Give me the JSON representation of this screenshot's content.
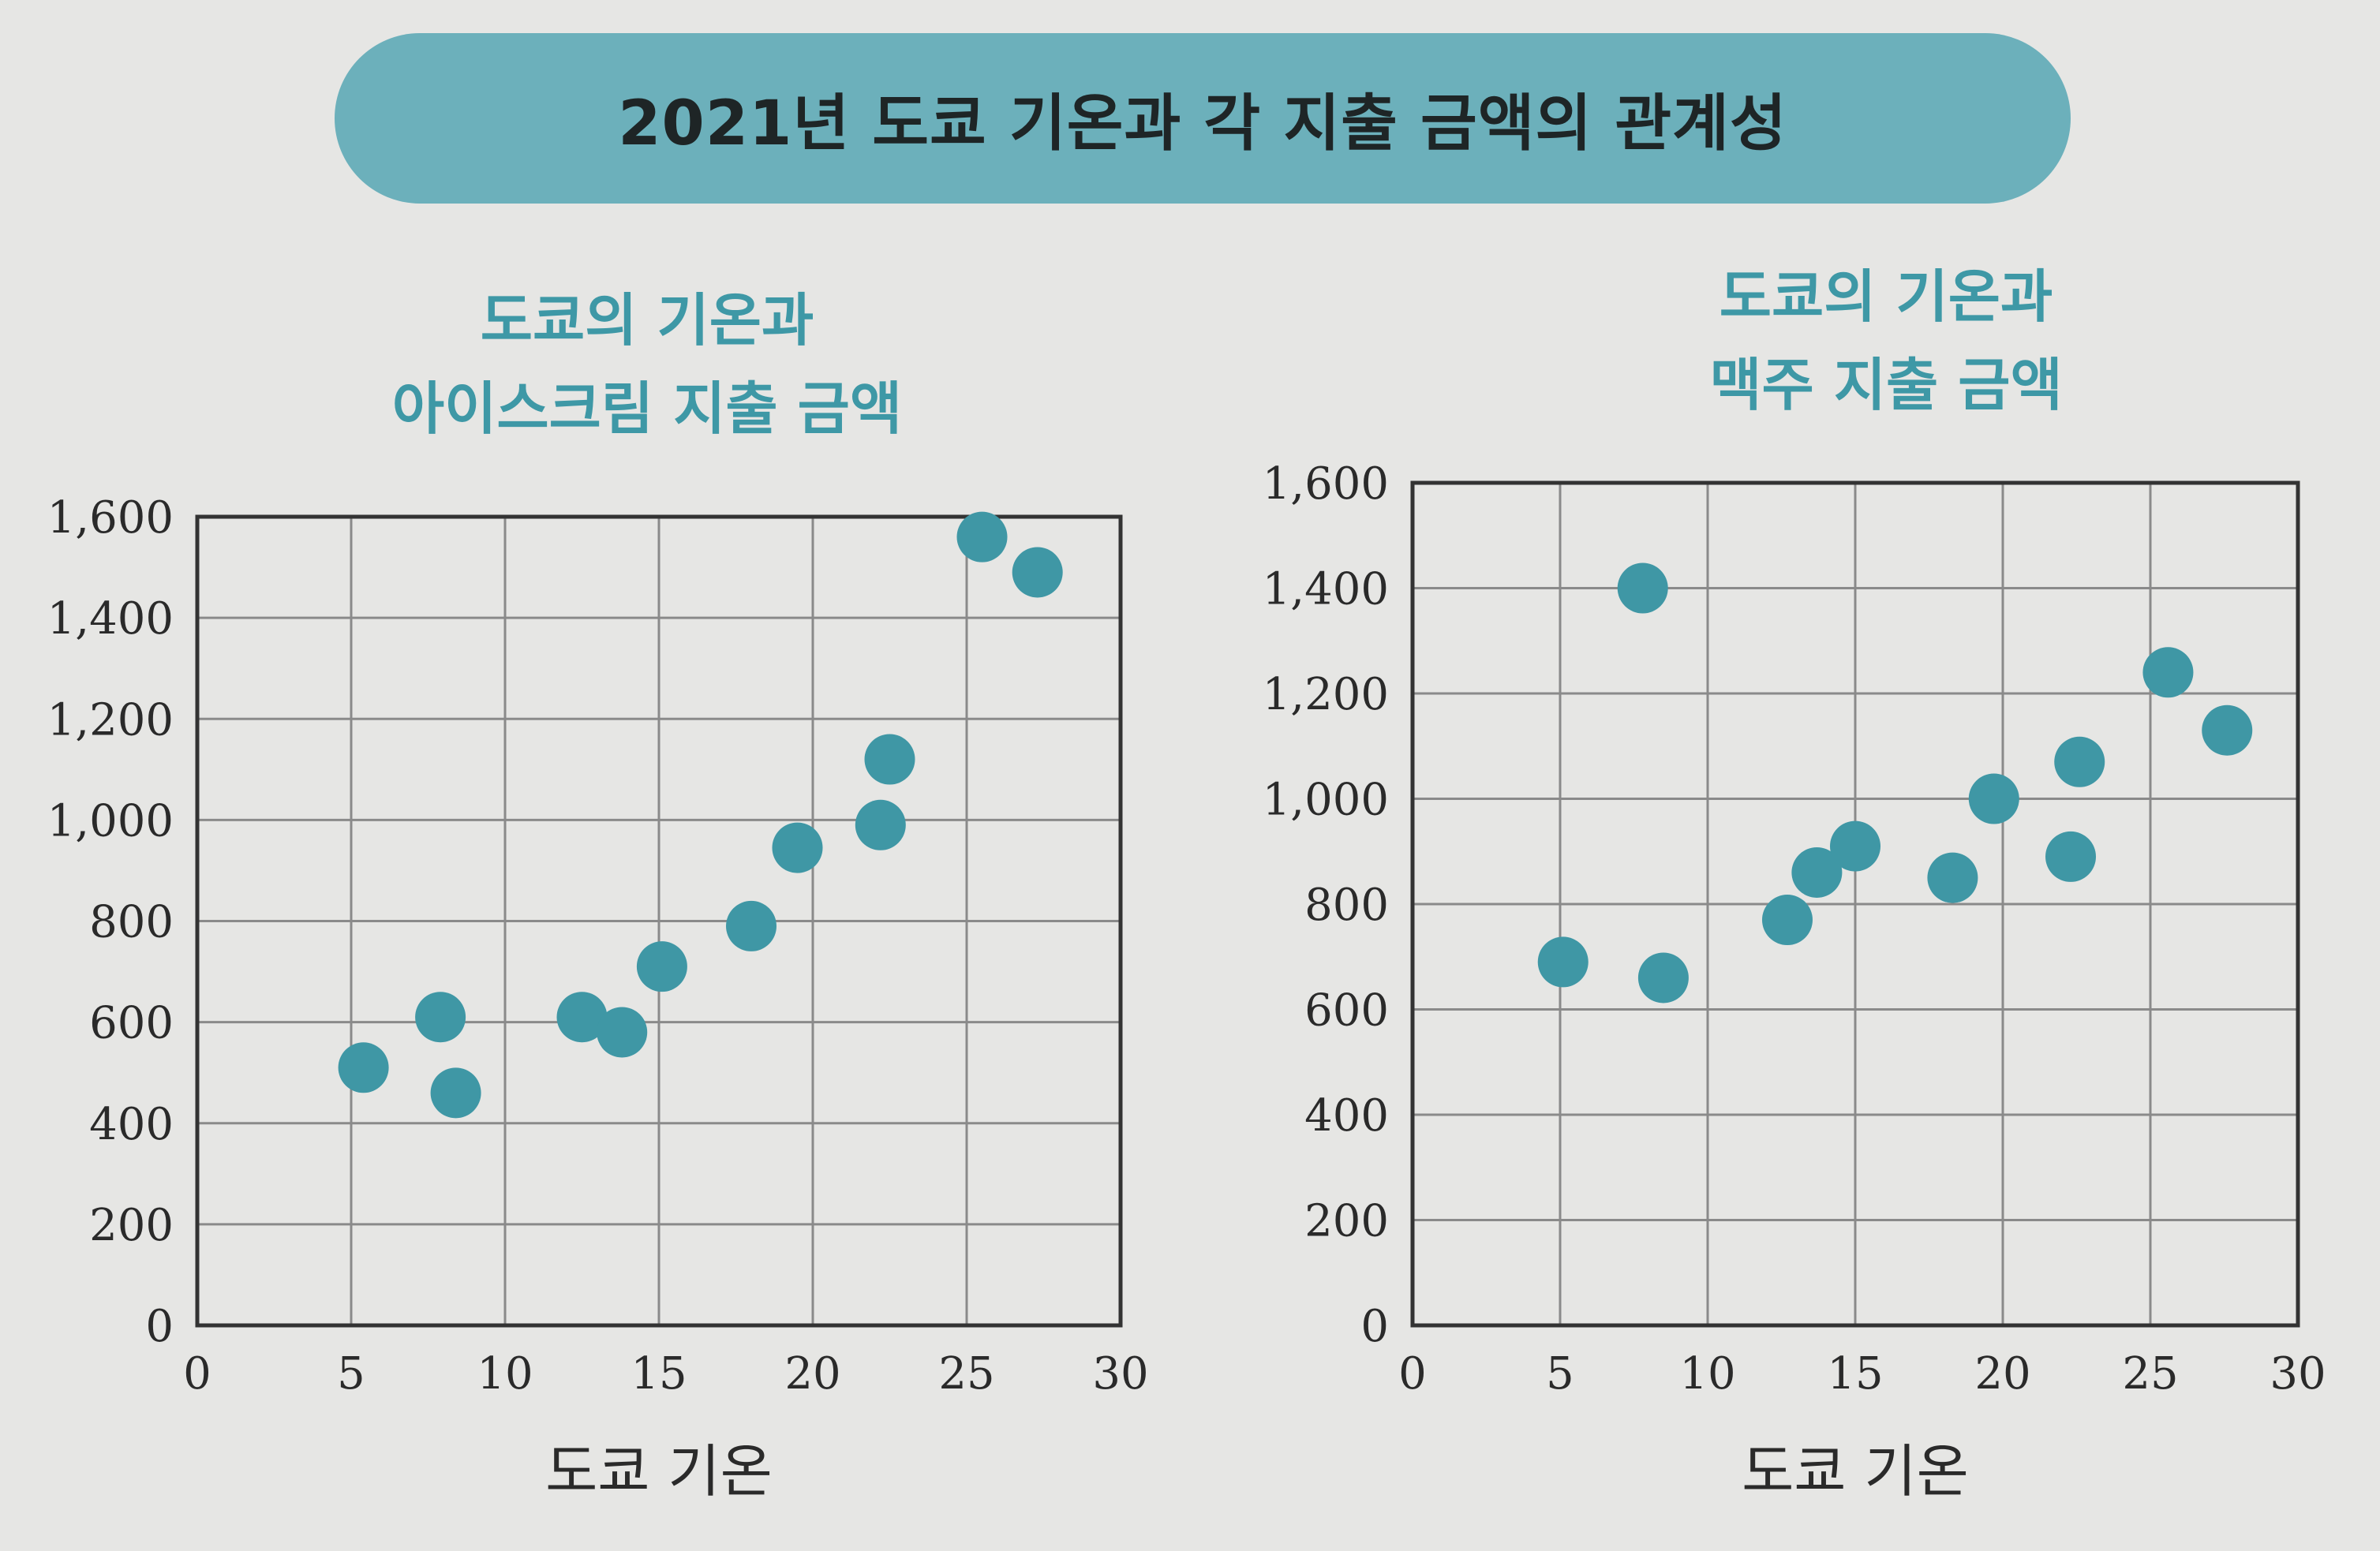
{
  "banner": {
    "title": "2021년 도쿄 기온과 각 지출 금액의 관계성"
  },
  "colors": {
    "banner": "#6cb0bb",
    "dot": "#3f97a5",
    "title": "#3e98a6",
    "grid": "#8a8a8a",
    "axis": "#333333"
  },
  "chart_data": [
    {
      "type": "scatter",
      "title": "도쿄의 기온과 아이스크림 지출 금액",
      "title_lines": [
        "도쿄의 기온과",
        "아이스크림 지출 금액"
      ],
      "xlabel": "도쿄 기온",
      "ylabel": "",
      "xlim": [
        0,
        30
      ],
      "ylim": [
        0,
        1600
      ],
      "x_ticks": [
        "0",
        "5",
        "10",
        "15",
        "20",
        "25",
        "30"
      ],
      "y_ticks": [
        "0",
        "200",
        "400",
        "600",
        "800",
        "1,000",
        "1,200",
        "1,400",
        "1,600"
      ],
      "grid": true,
      "points": [
        {
          "x": 5.4,
          "y": 510
        },
        {
          "x": 7.9,
          "y": 610
        },
        {
          "x": 8.4,
          "y": 460
        },
        {
          "x": 12.5,
          "y": 610
        },
        {
          "x": 13.8,
          "y": 580
        },
        {
          "x": 15.1,
          "y": 710
        },
        {
          "x": 18.0,
          "y": 790
        },
        {
          "x": 19.5,
          "y": 945
        },
        {
          "x": 22.2,
          "y": 990
        },
        {
          "x": 22.5,
          "y": 1120
        },
        {
          "x": 25.5,
          "y": 1560
        },
        {
          "x": 27.3,
          "y": 1490
        }
      ]
    },
    {
      "type": "scatter",
      "title": "도쿄의 기온과 맥주 지출 금액",
      "title_lines": [
        "도쿄의 기온과",
        "맥주 지출 금액"
      ],
      "xlabel": "도쿄 기온",
      "ylabel": "",
      "xlim": [
        0,
        30
      ],
      "ylim": [
        0,
        1600
      ],
      "x_ticks": [
        "0",
        "5",
        "10",
        "15",
        "20",
        "25",
        "30"
      ],
      "y_ticks": [
        "0",
        "200",
        "400",
        "600",
        "800",
        "1,000",
        "1,200",
        "1,400",
        "1,600"
      ],
      "grid": true,
      "points": [
        {
          "x": 5.1,
          "y": 690
        },
        {
          "x": 7.8,
          "y": 1400
        },
        {
          "x": 8.5,
          "y": 660
        },
        {
          "x": 12.7,
          "y": 770
        },
        {
          "x": 13.7,
          "y": 860
        },
        {
          "x": 15.0,
          "y": 910
        },
        {
          "x": 18.3,
          "y": 850
        },
        {
          "x": 19.7,
          "y": 1000
        },
        {
          "x": 22.3,
          "y": 890
        },
        {
          "x": 22.6,
          "y": 1070
        },
        {
          "x": 25.6,
          "y": 1240
        },
        {
          "x": 27.6,
          "y": 1130
        }
      ]
    }
  ]
}
